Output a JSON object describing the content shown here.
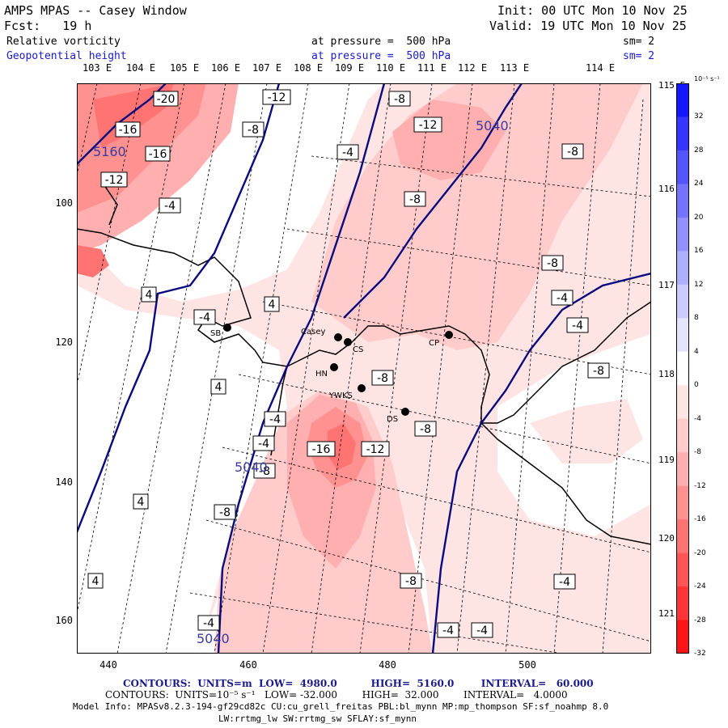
{
  "header": {
    "title": "AMPS MPAS -- Casey Window",
    "fcst": "Fcst:   19 h",
    "init": "Init: 00 UTC Mon 10 Nov 25",
    "valid": "Valid: 19 UTC Mon 10 Nov 25",
    "field1": "Relative vorticity",
    "field1_level": "at pressure =  500 hPa",
    "field1_sm": "sm= 2",
    "field2": "Geopotential height",
    "field2_level": "at pressure =  500 hPa",
    "field2_sm": "sm= 2"
  },
  "longitude_labels": [
    "103 E",
    "104 E",
    "105 E",
    "106 E",
    "107 E",
    "108 E",
    "109 E",
    "110 E",
    "111 E",
    "112 E",
    "113 E",
    "114 E"
  ],
  "latitude_labels_right": [
    "115 E",
    "116 E",
    "117 E",
    "118 E",
    "119 E",
    "120 E",
    "121 E"
  ],
  "y_axis_ticks": [
    "100",
    "120",
    "140",
    "160"
  ],
  "x_axis_ticks": [
    "440",
    "460",
    "480",
    "500"
  ],
  "stations": [
    {
      "name": "SB"
    },
    {
      "name": "Casey"
    },
    {
      "name": "CS"
    },
    {
      "name": "CP"
    },
    {
      "name": "HN"
    },
    {
      "name": "YWKS"
    },
    {
      "name": "DS"
    }
  ],
  "vorticity_labels": [
    "-20",
    "-16",
    "-16",
    "-12",
    "-8",
    "-12",
    "-8",
    "-4",
    "-8",
    "-12",
    "-8",
    "-8",
    "-4",
    "-4",
    "-4",
    "4",
    "4",
    "4",
    "-4",
    "-8",
    "-8",
    "-4",
    "-4",
    "-8",
    "-16",
    "-12",
    "-8",
    "-4",
    "4",
    "-8",
    "4",
    "-8",
    "-4",
    "-4",
    "-4"
  ],
  "height_labels": [
    "5160",
    "5040",
    "5040",
    "5040"
  ],
  "colorbar": {
    "unit": "10⁻⁵ s⁻¹",
    "ticks": [
      "32",
      "28",
      "24",
      "20",
      "16",
      "12",
      "8",
      "4",
      "0",
      "-4",
      "-8",
      "-12",
      "-16",
      "-20",
      "-24",
      "-28",
      "-32"
    ],
    "positive_colors": [
      "#1515ff",
      "#3535ff",
      "#5555ff",
      "#7373ff",
      "#9191ff",
      "#afafff",
      "#cbcbff",
      "#e4e4ff"
    ],
    "negative_colors": [
      "#ffe4e4",
      "#ffcbcb",
      "#ffafaf",
      "#ff9191",
      "#ff7373",
      "#ff5555",
      "#ff3535",
      "#ff1515"
    ]
  },
  "footer": {
    "line1": "CONTOURS:  UNITS=m  LOW=  4980.0          HIGH=  5160.0        INTERVAL=   60.000",
    "line2": "CONTOURS:  UNITS=10⁻⁵ s⁻¹   LOW= -32.000        HIGH=  32.000        INTERVAL=   4.0000",
    "line3": "Model Info: MPASv8.2.3-194-gf29cd82c CU:cu_grell_freitas PBL:bl_mynn MP:mp_thompson SF:sf_noahmp 8.0",
    "line4": "LW:rrtmg_lw SW:rrtmg_sw SFLAY:sf_mynn"
  }
}
